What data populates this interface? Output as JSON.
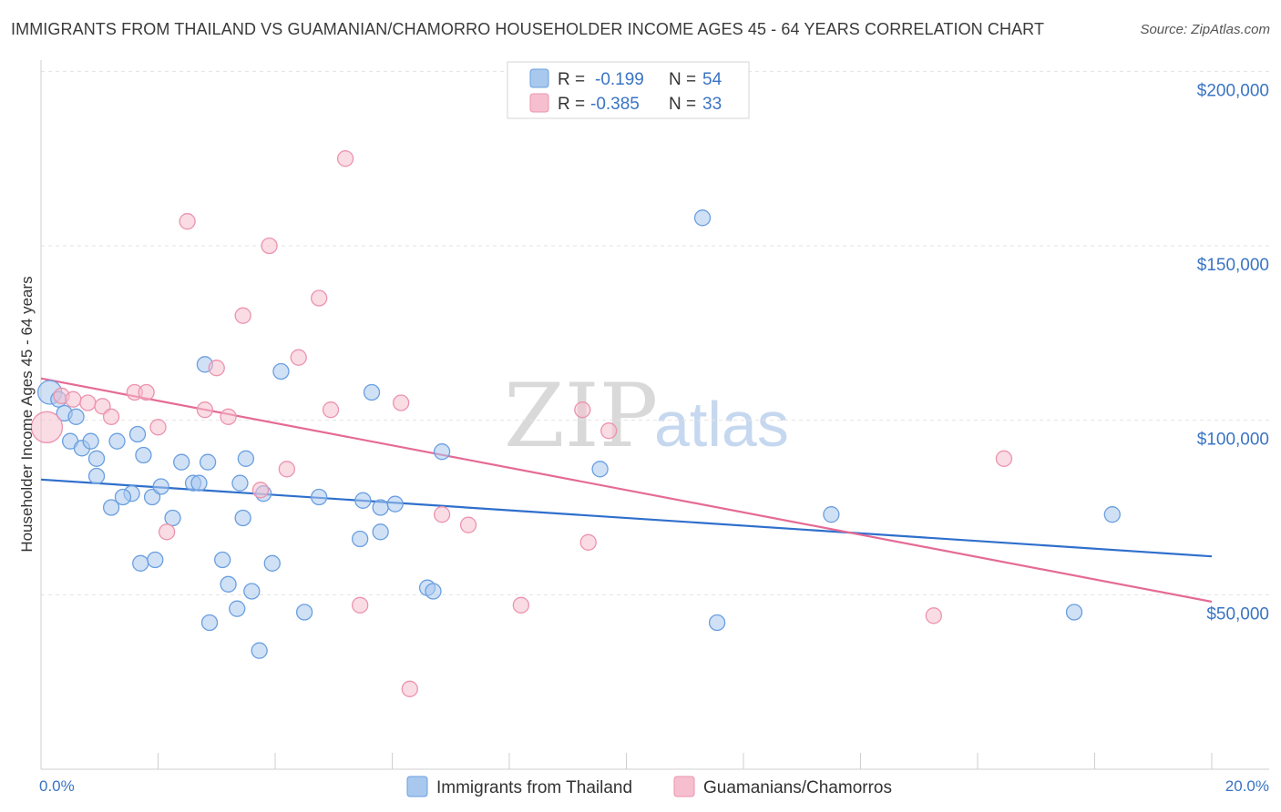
{
  "header": {
    "title": "IMMIGRANTS FROM THAILAND VS GUAMANIAN/CHAMORRO HOUSEHOLDER INCOME AGES 45 - 64 YEARS CORRELATION CHART",
    "source": "Source: ZipAtlas.com"
  },
  "watermark": {
    "zip": "ZIP",
    "atlas": "atlas"
  },
  "legend": {
    "row1": {
      "r_label": "R =",
      "r_value": "-0.199",
      "n_label": "N =",
      "n_value": "54"
    },
    "row2": {
      "r_label": "R =",
      "r_value": "-0.385",
      "n_label": "N =",
      "n_value": "33"
    }
  },
  "bottom_legend": {
    "series1": "Immigrants from Thailand",
    "series2": "Guamanians/Chamorros"
  },
  "colors": {
    "series1_fill": "#a9c8ee",
    "series1_stroke": "#6a9fe0",
    "series1_line": "#2f6fcc",
    "series2_fill": "#f6bfd0",
    "series2_stroke": "#ec93ae",
    "series2_line": "#e56a95",
    "tick_text": "#3a74c4",
    "grid": "#e3e3e3"
  },
  "chart_data": {
    "type": "scatter",
    "title": "IMMIGRANTS FROM THAILAND VS GUAMANIAN/CHAMORRO HOUSEHOLDER INCOME AGES 45 - 64 YEARS CORRELATION CHART",
    "xlabel": "",
    "ylabel": "Householder Income Ages 45 - 64 years",
    "xlim": [
      0,
      20
    ],
    "ylim": [
      0,
      200000
    ],
    "x_tick_labels": [
      "0.0%",
      "20.0%"
    ],
    "y_ticks": [
      50000,
      100000,
      150000,
      200000
    ],
    "y_tick_labels": [
      "$50,000",
      "$100,000",
      "$150,000",
      "$200,000"
    ],
    "grid": true,
    "legend_position": "top-center",
    "series": [
      {
        "name": "Immigrants from Thailand",
        "R": -0.199,
        "N": 54,
        "trend": [
          [
            0,
            83000
          ],
          [
            20,
            61000
          ]
        ],
        "points": [
          [
            0.15,
            108000
          ],
          [
            0.3,
            106000
          ],
          [
            0.4,
            102000
          ],
          [
            0.6,
            101000
          ],
          [
            0.5,
            94000
          ],
          [
            0.7,
            92000
          ],
          [
            0.85,
            94000
          ],
          [
            1.3,
            94000
          ],
          [
            1.65,
            96000
          ],
          [
            0.95,
            89000
          ],
          [
            1.75,
            90000
          ],
          [
            2.4,
            88000
          ],
          [
            2.85,
            88000
          ],
          [
            3.5,
            89000
          ],
          [
            0.95,
            84000
          ],
          [
            1.55,
            79000
          ],
          [
            1.9,
            78000
          ],
          [
            1.2,
            75000
          ],
          [
            1.4,
            78000
          ],
          [
            2.05,
            81000
          ],
          [
            2.6,
            82000
          ],
          [
            2.7,
            82000
          ],
          [
            3.4,
            82000
          ],
          [
            3.8,
            79000
          ],
          [
            2.25,
            72000
          ],
          [
            3.45,
            72000
          ],
          [
            4.75,
            78000
          ],
          [
            5.5,
            77000
          ],
          [
            5.8,
            75000
          ],
          [
            6.05,
            76000
          ],
          [
            5.8,
            68000
          ],
          [
            5.45,
            66000
          ],
          [
            1.95,
            60000
          ],
          [
            1.7,
            59000
          ],
          [
            3.1,
            60000
          ],
          [
            3.95,
            59000
          ],
          [
            3.2,
            53000
          ],
          [
            3.6,
            51000
          ],
          [
            6.6,
            52000
          ],
          [
            6.7,
            51000
          ],
          [
            3.35,
            46000
          ],
          [
            4.5,
            45000
          ],
          [
            2.88,
            42000
          ],
          [
            3.73,
            34000
          ],
          [
            2.8,
            116000
          ],
          [
            4.1,
            114000
          ],
          [
            5.65,
            108000
          ],
          [
            6.85,
            91000
          ],
          [
            9.55,
            86000
          ],
          [
            11.3,
            158000
          ],
          [
            13.5,
            73000
          ],
          [
            11.55,
            42000
          ],
          [
            18.3,
            73000
          ],
          [
            17.65,
            45000
          ]
        ]
      },
      {
        "name": "Guamanians/Chamorros",
        "R": -0.385,
        "N": 33,
        "trend": [
          [
            0,
            112000
          ],
          [
            20,
            48000
          ]
        ],
        "points": [
          [
            0.1,
            98000
          ],
          [
            0.35,
            107000
          ],
          [
            0.55,
            106000
          ],
          [
            0.8,
            105000
          ],
          [
            1.05,
            104000
          ],
          [
            1.2,
            101000
          ],
          [
            1.6,
            108000
          ],
          [
            1.8,
            108000
          ],
          [
            2.0,
            98000
          ],
          [
            2.15,
            68000
          ],
          [
            2.5,
            157000
          ],
          [
            2.8,
            103000
          ],
          [
            3.0,
            115000
          ],
          [
            3.2,
            101000
          ],
          [
            3.45,
            130000
          ],
          [
            3.75,
            80000
          ],
          [
            3.9,
            150000
          ],
          [
            4.2,
            86000
          ],
          [
            4.4,
            118000
          ],
          [
            4.75,
            135000
          ],
          [
            4.95,
            103000
          ],
          [
            5.2,
            175000
          ],
          [
            5.45,
            47000
          ],
          [
            6.15,
            105000
          ],
          [
            6.3,
            23000
          ],
          [
            6.85,
            73000
          ],
          [
            7.3,
            70000
          ],
          [
            8.2,
            47000
          ],
          [
            9.25,
            103000
          ],
          [
            9.35,
            65000
          ],
          [
            9.7,
            97000
          ],
          [
            15.25,
            44000
          ],
          [
            16.45,
            89000
          ]
        ]
      }
    ]
  }
}
